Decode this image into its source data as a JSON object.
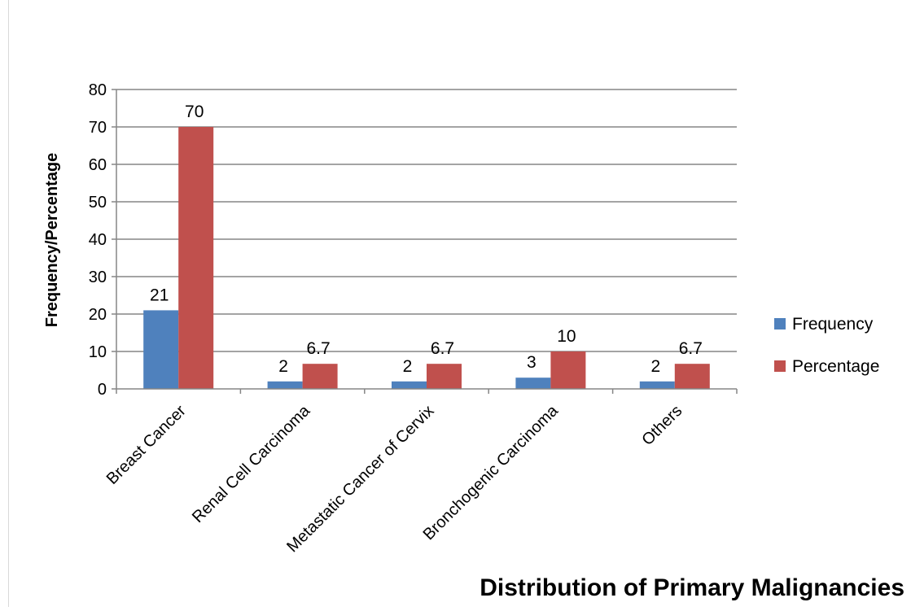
{
  "chart_data": {
    "type": "bar",
    "title": "Distribution of Primary Malignancies",
    "xlabel": "",
    "ylabel": "Frequency/Percentage",
    "ylim": [
      0,
      80
    ],
    "yticks": [
      0,
      10,
      20,
      30,
      40,
      50,
      60,
      70,
      80
    ],
    "grid": true,
    "legend_position": "right",
    "categories": [
      "Breast Cancer",
      "Renal Cell Carcinoma",
      "Metastatic Cancer of Cervix",
      "Bronchogenic Carcinoma",
      "Others"
    ],
    "series": [
      {
        "name": "Frequency",
        "color": "#4f81bd",
        "values": [
          21,
          2,
          2,
          3,
          2
        ],
        "labels": [
          "21",
          "2",
          "2",
          "3",
          "2"
        ]
      },
      {
        "name": "Percentage",
        "color": "#c0504d",
        "values": [
          70,
          6.7,
          6.7,
          10,
          6.7
        ],
        "labels": [
          "70",
          "6.7",
          "6.7",
          "10",
          "6.7"
        ]
      }
    ]
  }
}
